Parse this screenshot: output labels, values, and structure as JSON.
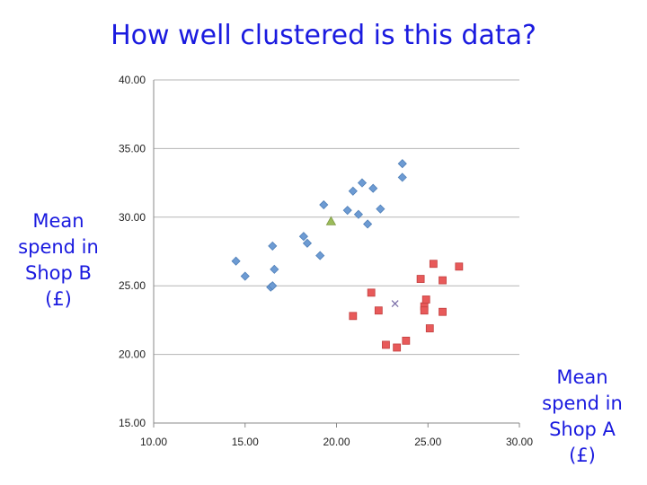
{
  "title": "How well clustered is this data?",
  "xlabel_lines": [
    "Mean",
    "spend in",
    "Shop A",
    "(£)"
  ],
  "ylabel_lines": [
    "Mean",
    "spend in",
    "Shop B",
    "(£)"
  ],
  "chart_data": {
    "type": "scatter",
    "title": "How well clustered is this data?",
    "xlabel": "Mean spend in Shop A (£)",
    "ylabel": "Mean spend in Shop B (£)",
    "xlim": [
      10,
      30
    ],
    "ylim": [
      15,
      40
    ],
    "x_ticks": [
      "10.00",
      "15.00",
      "20.00",
      "25.00",
      "30.00"
    ],
    "y_ticks": [
      "15.00",
      "20.00",
      "25.00",
      "30.00",
      "35.00",
      "40.00"
    ],
    "grid": "horizontal",
    "series": [
      {
        "marker": "diamond",
        "color": "#6d9bd3",
        "points": [
          [
            14.5,
            26.8
          ],
          [
            15.0,
            25.7
          ],
          [
            16.4,
            24.9
          ],
          [
            16.5,
            25.0
          ],
          [
            16.5,
            27.9
          ],
          [
            16.6,
            26.2
          ],
          [
            18.2,
            28.6
          ],
          [
            18.4,
            28.1
          ],
          [
            19.1,
            27.2
          ],
          [
            19.3,
            30.9
          ],
          [
            20.6,
            30.5
          ],
          [
            20.9,
            31.9
          ],
          [
            21.2,
            30.2
          ],
          [
            21.4,
            32.5
          ],
          [
            21.7,
            29.5
          ],
          [
            22.0,
            32.1
          ],
          [
            22.4,
            30.6
          ],
          [
            23.6,
            33.9
          ],
          [
            23.6,
            32.9
          ]
        ]
      },
      {
        "marker": "square",
        "color": "#e85a5a",
        "points": [
          [
            20.9,
            22.8
          ],
          [
            21.9,
            24.5
          ],
          [
            22.3,
            23.2
          ],
          [
            22.7,
            20.7
          ],
          [
            23.3,
            20.5
          ],
          [
            23.8,
            21.0
          ],
          [
            24.6,
            25.5
          ],
          [
            24.8,
            23.5
          ],
          [
            24.8,
            23.2
          ],
          [
            24.9,
            24.0
          ],
          [
            25.1,
            21.9
          ],
          [
            25.3,
            26.6
          ],
          [
            25.8,
            25.4
          ],
          [
            25.8,
            23.1
          ],
          [
            26.7,
            26.4
          ]
        ]
      },
      {
        "marker": "triangle",
        "color": "#9bbb59",
        "points": [
          [
            19.7,
            29.7
          ]
        ]
      },
      {
        "marker": "x",
        "color": "#7b6fa8",
        "points": [
          [
            23.2,
            23.7
          ]
        ]
      }
    ]
  }
}
